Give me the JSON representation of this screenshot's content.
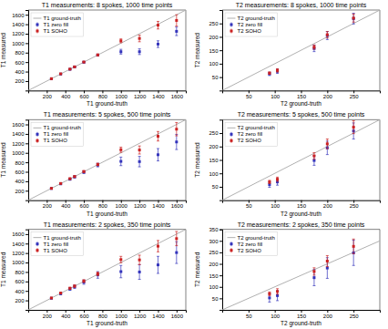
{
  "chart_data": [
    {
      "type": "scatter",
      "title": "T1 measurements: 8 spokes, 1000 time points",
      "x_label": "T1 ground-truth",
      "y_label": "T1 measured",
      "x": [
        250,
        350,
        450,
        500,
        600,
        750,
        1000,
        1200,
        1400,
        1600
      ],
      "series": [
        {
          "name": "T1 ground-truth",
          "type": "line",
          "color": "#b0b0b0",
          "x": [
            0,
            1700
          ],
          "values": [
            0,
            1700
          ]
        },
        {
          "name": "T1 zero fill",
          "color": "#3333bb",
          "marker": "square",
          "values": [
            248,
            348,
            448,
            498,
            598,
            748,
            820,
            820,
            980,
            1250
          ],
          "errors": [
            5,
            8,
            10,
            12,
            15,
            20,
            50,
            60,
            70,
            90
          ]
        },
        {
          "name": "T1 SOHO",
          "color": "#cc2222",
          "marker": "square",
          "values": [
            250,
            352,
            452,
            500,
            602,
            752,
            1050,
            1100,
            1380,
            1480
          ],
          "errors": [
            4,
            6,
            8,
            10,
            12,
            18,
            40,
            70,
            80,
            120
          ]
        }
      ],
      "xlim": [
        0,
        1700
      ],
      "ylim": [
        0,
        1700
      ],
      "xticks": [
        200,
        400,
        600,
        800,
        1000,
        1200,
        1400,
        1600
      ],
      "yticks": [
        200,
        400,
        600,
        800,
        1000,
        1200,
        1400,
        1600
      ],
      "legend": "upper left",
      "grid": false
    },
    {
      "type": "scatter",
      "title": "T2 measurements: 8 spokes, 1000 time points",
      "x_label": "T2 ground-truth",
      "y_label": "T2 measured",
      "x": [
        90,
        105,
        175,
        200,
        250
      ],
      "series": [
        {
          "name": "T2 ground-truth",
          "type": "line",
          "color": "#b0b0b0",
          "x": [
            0,
            300
          ],
          "values": [
            0,
            300
          ]
        },
        {
          "name": "T2 zero fill",
          "color": "#3333bb",
          "marker": "square",
          "values": [
            62,
            72,
            157,
            205,
            268
          ],
          "errors": [
            6,
            8,
            12,
            15,
            20
          ]
        },
        {
          "name": "T2 SOHO",
          "color": "#cc2222",
          "marker": "square",
          "values": [
            65,
            75,
            162,
            208,
            270
          ],
          "errors": [
            4,
            6,
            8,
            12,
            15
          ]
        }
      ],
      "xlim": [
        0,
        300
      ],
      "ylim": [
        0,
        300
      ],
      "xticks": [
        50,
        100,
        150,
        200,
        250
      ],
      "yticks": [
        50,
        100,
        150,
        200,
        250
      ],
      "legend": "upper left",
      "grid": false
    },
    {
      "type": "scatter",
      "title": "T1 measurements: 5 spokes, 500 time points",
      "x_label": "T1 ground-truth",
      "y_label": "T1 measured",
      "x": [
        250,
        350,
        450,
        500,
        600,
        750,
        1000,
        1200,
        1400,
        1600
      ],
      "series": [
        {
          "name": "T1 ground-truth",
          "type": "line",
          "color": "#b0b0b0",
          "x": [
            0,
            1700
          ],
          "values": [
            0,
            1700
          ]
        },
        {
          "name": "T1 zero fill",
          "color": "#3333bb",
          "marker": "square",
          "values": [
            248,
            345,
            443,
            492,
            592,
            742,
            820,
            815,
            960,
            1230
          ],
          "errors": [
            8,
            12,
            18,
            22,
            28,
            38,
            90,
            110,
            130,
            160
          ]
        },
        {
          "name": "T1 SOHO",
          "color": "#cc2222",
          "marker": "square",
          "values": [
            250,
            353,
            455,
            500,
            605,
            755,
            1065,
            1060,
            1350,
            1500
          ],
          "errors": [
            5,
            8,
            12,
            15,
            18,
            25,
            55,
            85,
            100,
            140
          ]
        }
      ],
      "xlim": [
        0,
        1700
      ],
      "ylim": [
        0,
        1700
      ],
      "xticks": [
        200,
        400,
        600,
        800,
        1000,
        1200,
        1400,
        1600
      ],
      "yticks": [
        200,
        400,
        600,
        800,
        1000,
        1200,
        1400,
        1600
      ],
      "legend": "upper left",
      "grid": false
    },
    {
      "type": "scatter",
      "title": "T2 measurements: 5 spokes, 500 time points",
      "x_label": "T2 ground-truth",
      "y_label": "T2 measured",
      "x": [
        90,
        105,
        175,
        200,
        250
      ],
      "series": [
        {
          "name": "T2 ground-truth",
          "type": "line",
          "color": "#b0b0b0",
          "x": [
            0,
            300
          ],
          "values": [
            0,
            300
          ]
        },
        {
          "name": "T2 zero fill",
          "color": "#3333bb",
          "marker": "square",
          "values": [
            58,
            68,
            148,
            195,
            258
          ],
          "errors": [
            10,
            12,
            18,
            25,
            30
          ]
        },
        {
          "name": "T2 SOHO",
          "color": "#cc2222",
          "marker": "square",
          "values": [
            68,
            78,
            165,
            210,
            272
          ],
          "errors": [
            6,
            8,
            12,
            18,
            24
          ]
        }
      ],
      "xlim": [
        0,
        300
      ],
      "ylim": [
        0,
        300
      ],
      "xticks": [
        50,
        100,
        150,
        200,
        250
      ],
      "yticks": [
        50,
        100,
        150,
        200,
        250
      ],
      "legend": "upper left",
      "grid": false
    },
    {
      "type": "scatter",
      "title": "T1 measurements: 2 spokes, 350 time points",
      "x_label": "T1 ground-truth",
      "y_label": "T1 measured",
      "x": [
        250,
        350,
        450,
        500,
        600,
        750,
        1000,
        1200,
        1400,
        1600
      ],
      "series": [
        {
          "name": "T1 ground-truth",
          "type": "line",
          "color": "#b0b0b0",
          "x": [
            0,
            1700
          ],
          "values": [
            0,
            1700
          ]
        },
        {
          "name": "T1 zero fill",
          "color": "#3333bb",
          "marker": "square",
          "values": [
            245,
            340,
            440,
            488,
            585,
            738,
            808,
            800,
            950,
            1210
          ],
          "errors": [
            12,
            18,
            28,
            35,
            45,
            70,
            130,
            155,
            180,
            230
          ]
        },
        {
          "name": "T1 SOHO",
          "color": "#cc2222",
          "marker": "square",
          "values": [
            251,
            355,
            457,
            502,
            608,
            760,
            1062,
            1055,
            1345,
            1505
          ],
          "errors": [
            8,
            12,
            18,
            22,
            28,
            35,
            68,
            100,
            120,
            150
          ]
        }
      ],
      "xlim": [
        0,
        1700
      ],
      "ylim": [
        0,
        1700
      ],
      "xticks": [
        200,
        400,
        600,
        800,
        1000,
        1200,
        1400,
        1600
      ],
      "yticks": [
        200,
        400,
        600,
        800,
        1000,
        1200,
        1400,
        1600
      ],
      "legend": "upper left",
      "grid": false
    },
    {
      "type": "scatter",
      "title": "T2 measurements: 2 spokes, 350 time points",
      "x_label": "T2 ground-truth",
      "y_label": "T2 measured",
      "x": [
        90,
        105,
        175,
        200,
        250
      ],
      "series": [
        {
          "name": "T2 ground-truth",
          "type": "line",
          "color": "#b0b0b0",
          "x": [
            0,
            300
          ],
          "values": [
            0,
            300
          ]
        },
        {
          "name": "T2 zero fill",
          "color": "#3333bb",
          "marker": "square",
          "values": [
            52,
            62,
            140,
            182,
            248
          ],
          "errors": [
            18,
            22,
            35,
            45,
            55
          ]
        },
        {
          "name": "T2 SOHO",
          "color": "#cc2222",
          "marker": "square",
          "values": [
            70,
            80,
            167,
            212,
            276
          ],
          "errors": [
            8,
            12,
            16,
            24,
            32
          ]
        }
      ],
      "xlim": [
        0,
        300
      ],
      "ylim": [
        0,
        350
      ],
      "xticks": [
        50,
        100,
        150,
        200,
        250
      ],
      "yticks": [
        50,
        100,
        150,
        200,
        250,
        300,
        350
      ],
      "legend": "upper left",
      "grid": false
    }
  ]
}
